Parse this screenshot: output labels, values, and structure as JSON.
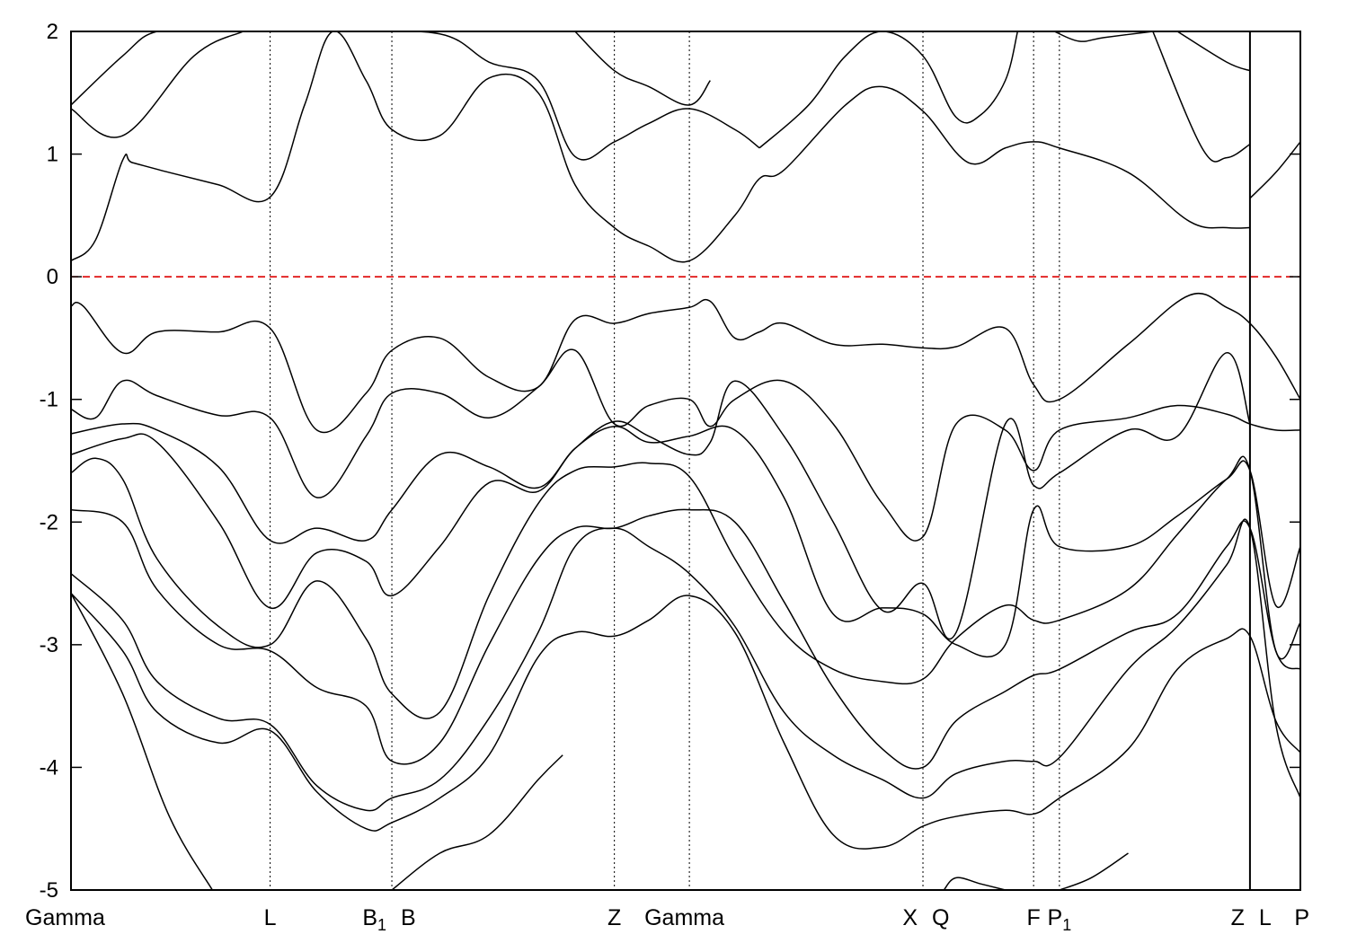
{
  "chart_data": {
    "type": "line",
    "title": "",
    "xlabel": "",
    "ylabel": "",
    "ylim": [
      -5,
      2
    ],
    "xlim": [
      0,
      1
    ],
    "yticks": [
      -5,
      -4,
      -3,
      -2,
      -1,
      0,
      1,
      2
    ],
    "fermi_level": 0,
    "colors": {
      "bands": "#000000",
      "fermi": "#dd0000",
      "frame": "#000000"
    },
    "kpoints": [
      {
        "label": "Gamma",
        "sub": "",
        "x": 0.0,
        "line": false
      },
      {
        "label": "L",
        "sub": "",
        "x": 0.162,
        "line": true
      },
      {
        "label": "B",
        "sub": "1",
        "x": 0.261,
        "line": true
      },
      {
        "label": "B",
        "sub": "",
        "x": 0.261,
        "line": false
      },
      {
        "label": "Z",
        "sub": "",
        "x": 0.442,
        "line": true
      },
      {
        "label": "Gamma",
        "sub": "",
        "x": 0.503,
        "line": true
      },
      {
        "label": "X",
        "sub": "",
        "x": 0.693,
        "line": true
      },
      {
        "label": "Q",
        "sub": "",
        "x": 0.693,
        "line": false
      },
      {
        "label": "F",
        "sub": "",
        "x": 0.783,
        "line": true
      },
      {
        "label": "P",
        "sub": "1",
        "x": 0.804,
        "line": true
      },
      {
        "label": "Z",
        "sub": "",
        "x": 0.959,
        "line": true
      },
      {
        "label": "L",
        "sub": "",
        "x": 0.959,
        "line": false
      },
      {
        "label": "P",
        "sub": "",
        "x": 1.0,
        "line": false
      }
    ],
    "segment_break": 0.959,
    "series": [
      {
        "x": [
          0.0,
          0.02,
          0.042,
          0.05,
          0.08,
          0.12,
          0.162,
          0.19,
          0.213,
          0.24,
          0.261,
          0.3,
          0.34,
          0.38,
          0.41,
          0.442,
          0.47,
          0.503,
          0.54,
          0.56,
          0.58,
          0.63,
          0.66,
          0.693,
          0.73,
          0.76,
          0.783,
          0.804,
          0.86,
          0.91,
          0.94,
          0.959
        ],
        "y": [
          0.13,
          0.3,
          0.95,
          0.93,
          0.85,
          0.75,
          0.65,
          1.4,
          2.0,
          1.6,
          1.2,
          1.15,
          1.62,
          1.5,
          0.75,
          0.4,
          0.25,
          0.13,
          0.5,
          0.8,
          0.87,
          1.4,
          1.55,
          1.35,
          0.93,
          1.05,
          1.1,
          1.05,
          0.85,
          0.45,
          0.4,
          0.4
        ]
      },
      {
        "x": [
          0.0,
          0.042,
          0.1,
          0.14
        ],
        "y": [
          1.37,
          1.15,
          1.8,
          2.0
        ]
      },
      {
        "x": [
          0.0,
          0.042,
          0.07,
          0.12,
          0.14
        ],
        "y": [
          1.4,
          1.8,
          2.0,
          2.0,
          2.0
        ]
      },
      {
        "x": [
          0.22,
          0.3,
          0.34,
          0.38,
          0.41,
          0.442,
          0.47,
          0.503,
          0.54,
          0.56
        ],
        "y": [
          2.0,
          1.98,
          1.75,
          1.6,
          0.98,
          1.1,
          1.25,
          1.37,
          1.2,
          1.05
        ]
      },
      {
        "x": [
          0.41,
          0.442,
          0.47,
          0.503,
          0.52
        ],
        "y": [
          2.0,
          1.68,
          1.55,
          1.4,
          1.6
        ]
      },
      {
        "x": [
          0.56,
          0.6,
          0.63,
          0.66,
          0.693,
          0.72,
          0.74,
          0.76,
          0.77
        ],
        "y": [
          1.05,
          1.4,
          1.8,
          2.0,
          1.8,
          1.3,
          1.32,
          1.6,
          2.0
        ]
      },
      {
        "x": [
          0.8,
          0.82,
          0.84,
          0.88
        ],
        "y": [
          2.0,
          1.92,
          1.95,
          2.0
        ]
      },
      {
        "x": [
          0.9,
          0.94,
          0.959
        ],
        "y": [
          2.0,
          1.75,
          1.68
        ]
      },
      {
        "x": [
          0.88,
          0.92,
          0.94,
          0.959
        ],
        "y": [
          2.0,
          1.05,
          0.97,
          1.08
        ]
      },
      {
        "x": [
          0.959,
          0.98,
          1.0
        ],
        "y": [
          0.64,
          0.85,
          1.1
        ]
      },
      {
        "x": [
          0.0,
          0.01,
          0.042,
          0.07,
          0.12,
          0.162,
          0.2,
          0.24,
          0.261,
          0.3,
          0.34,
          0.38,
          0.41,
          0.442,
          0.47,
          0.503,
          0.52,
          0.54,
          0.56,
          0.58,
          0.62,
          0.66,
          0.693,
          0.72,
          0.76,
          0.783,
          0.804,
          0.86,
          0.91,
          0.94,
          0.959,
          0.98,
          1.0
        ],
        "y": [
          -0.24,
          -0.24,
          -0.62,
          -0.45,
          -0.45,
          -0.42,
          -1.25,
          -0.95,
          -0.6,
          -0.5,
          -0.82,
          -0.9,
          -0.35,
          -0.38,
          -0.3,
          -0.25,
          -0.2,
          -0.5,
          -0.45,
          -0.38,
          -0.55,
          -0.55,
          -0.58,
          -0.57,
          -0.42,
          -0.88,
          -1.0,
          -0.55,
          -0.15,
          -0.25,
          -0.38,
          -0.65,
          -1.0
        ]
      },
      {
        "x": [
          0.0,
          0.02,
          0.042,
          0.07,
          0.12,
          0.162,
          0.2,
          0.24,
          0.261,
          0.3,
          0.34,
          0.38,
          0.41,
          0.442,
          0.47,
          0.503,
          0.52,
          0.54,
          0.58,
          0.62,
          0.66,
          0.693,
          0.72,
          0.76,
          0.783,
          0.804,
          0.86,
          0.9,
          0.94,
          0.959,
          0.98,
          1.0
        ],
        "y": [
          -1.08,
          -1.15,
          -0.85,
          -0.97,
          -1.13,
          -1.15,
          -1.8,
          -1.3,
          -0.95,
          -0.95,
          -1.15,
          -0.9,
          -0.6,
          -1.2,
          -1.05,
          -1.0,
          -1.22,
          -1.0,
          -0.85,
          -1.2,
          -1.85,
          -2.12,
          -1.2,
          -1.25,
          -1.58,
          -1.25,
          -1.15,
          -1.05,
          -1.12,
          -1.2,
          -1.25,
          -1.25
        ]
      },
      {
        "x": [
          0.0,
          0.042,
          0.07,
          0.12,
          0.162,
          0.2,
          0.24,
          0.261,
          0.3,
          0.34,
          0.38,
          0.41,
          0.442,
          0.47,
          0.503,
          0.52,
          0.54,
          0.58,
          0.62,
          0.66,
          0.693,
          0.72,
          0.76,
          0.783,
          0.804,
          0.86,
          0.9,
          0.94,
          0.959
        ],
        "y": [
          -1.28,
          -1.2,
          -1.25,
          -1.55,
          -2.15,
          -2.05,
          -2.15,
          -1.9,
          -1.45,
          -1.55,
          -1.72,
          -1.4,
          -1.18,
          -1.3,
          -1.45,
          -1.35,
          -0.85,
          -1.3,
          -2.0,
          -2.72,
          -2.5,
          -2.9,
          -1.2,
          -1.7,
          -1.6,
          -1.25,
          -1.3,
          -0.62,
          -1.2
        ]
      },
      {
        "x": [
          0.0,
          0.042,
          0.07,
          0.12,
          0.162,
          0.2,
          0.24,
          0.261,
          0.3,
          0.34,
          0.38,
          0.41,
          0.442,
          0.47,
          0.503,
          0.54,
          0.58,
          0.62,
          0.66,
          0.693,
          0.72,
          0.76,
          0.783,
          0.804,
          0.86,
          0.9,
          0.94,
          0.959,
          0.98,
          1.0
        ],
        "y": [
          -1.45,
          -1.32,
          -1.35,
          -2.0,
          -2.7,
          -2.25,
          -2.32,
          -2.6,
          -2.2,
          -1.68,
          -1.75,
          -1.4,
          -1.22,
          -1.35,
          -1.3,
          -1.25,
          -1.8,
          -2.75,
          -2.7,
          -2.75,
          -3.0,
          -3.0,
          -1.9,
          -2.2,
          -2.2,
          -1.95,
          -1.65,
          -1.58,
          -2.68,
          -2.2
        ]
      },
      {
        "x": [
          0.0,
          0.02,
          0.042,
          0.07,
          0.12,
          0.162,
          0.2,
          0.24,
          0.261,
          0.3,
          0.34,
          0.38,
          0.41,
          0.442,
          0.47,
          0.503,
          0.54,
          0.58,
          0.62,
          0.66,
          0.693,
          0.72,
          0.76,
          0.783,
          0.804,
          0.86,
          0.9,
          0.94,
          0.959,
          0.98,
          1.0
        ],
        "y": [
          -1.6,
          -1.48,
          -1.65,
          -2.3,
          -2.85,
          -3.0,
          -2.48,
          -2.95,
          -3.4,
          -3.55,
          -2.6,
          -1.85,
          -1.58,
          -1.55,
          -1.52,
          -1.63,
          -2.3,
          -2.9,
          -3.2,
          -3.3,
          -3.28,
          -2.95,
          -2.68,
          -2.8,
          -2.8,
          -2.55,
          -2.1,
          -1.65,
          -1.58,
          -3.05,
          -2.82
        ]
      },
      {
        "x": [
          0.0,
          0.042,
          0.07,
          0.12,
          0.162,
          0.2,
          0.24,
          0.261,
          0.3,
          0.34,
          0.38,
          0.41,
          0.442,
          0.47,
          0.503,
          0.54,
          0.58,
          0.62,
          0.66,
          0.693,
          0.72,
          0.76,
          0.783,
          0.804,
          0.86,
          0.9,
          0.94,
          0.959,
          0.98,
          1.0
        ],
        "y": [
          -1.9,
          -2.0,
          -2.55,
          -3.0,
          -3.05,
          -3.35,
          -3.5,
          -3.95,
          -3.8,
          -3.0,
          -2.3,
          -2.05,
          -2.05,
          -1.95,
          -1.9,
          -2.0,
          -2.65,
          -3.35,
          -3.85,
          -4.0,
          -3.62,
          -3.38,
          -3.25,
          -3.2,
          -2.9,
          -2.75,
          -2.2,
          -2.05,
          -3.05,
          -3.2
        ]
      },
      {
        "x": [
          0.0,
          0.042,
          0.07,
          0.12,
          0.162,
          0.2,
          0.24,
          0.261,
          0.3,
          0.34,
          0.38,
          0.41,
          0.442,
          0.47,
          0.503,
          0.54,
          0.58,
          0.62,
          0.66,
          0.693,
          0.72,
          0.76,
          0.783,
          0.804,
          0.86,
          0.9,
          0.94,
          0.959,
          0.98,
          1.0
        ],
        "y": [
          -2.42,
          -2.8,
          -3.3,
          -3.6,
          -3.65,
          -4.15,
          -4.35,
          -4.25,
          -4.1,
          -3.6,
          -2.9,
          -2.2,
          -2.05,
          -2.2,
          -2.42,
          -2.85,
          -3.55,
          -3.9,
          -4.1,
          -4.25,
          -4.05,
          -3.95,
          -3.95,
          -3.92,
          -3.2,
          -2.85,
          -2.35,
          -2.05,
          -3.65,
          -4.25
        ]
      },
      {
        "x": [
          0.0,
          0.042,
          0.07,
          0.12,
          0.162,
          0.2,
          0.24,
          0.261,
          0.3,
          0.34,
          0.38,
          0.41,
          0.442,
          0.47,
          0.503,
          0.54,
          0.58,
          0.62,
          0.66,
          0.693,
          0.72,
          0.76,
          0.783,
          0.804,
          0.86,
          0.9,
          0.94,
          0.959,
          0.98,
          1.0
        ],
        "y": [
          -2.58,
          -3.05,
          -3.55,
          -3.8,
          -3.7,
          -4.2,
          -4.5,
          -4.45,
          -4.25,
          -3.9,
          -3.1,
          -2.9,
          -2.93,
          -2.8,
          -2.6,
          -2.9,
          -3.8,
          -4.55,
          -4.65,
          -4.48,
          -4.4,
          -4.35,
          -4.38,
          -4.25,
          -3.85,
          -3.2,
          -2.95,
          -2.93,
          -3.62,
          -3.88
        ]
      },
      {
        "x": [
          0.0,
          0.042,
          0.08,
          0.115
        ],
        "y": [
          -2.58,
          -3.4,
          -4.4,
          -5.0
        ]
      },
      {
        "x": [
          0.261,
          0.3,
          0.34,
          0.38,
          0.4
        ],
        "y": [
          -5.0,
          -4.7,
          -4.55,
          -4.1,
          -3.9
        ]
      },
      {
        "x": [
          0.71,
          0.72,
          0.74,
          0.76
        ],
        "y": [
          -5.0,
          -4.9,
          -4.95,
          -5.0
        ]
      },
      {
        "x": [
          0.804,
          0.83,
          0.86
        ],
        "y": [
          -5.0,
          -4.9,
          -4.7
        ]
      }
    ]
  }
}
